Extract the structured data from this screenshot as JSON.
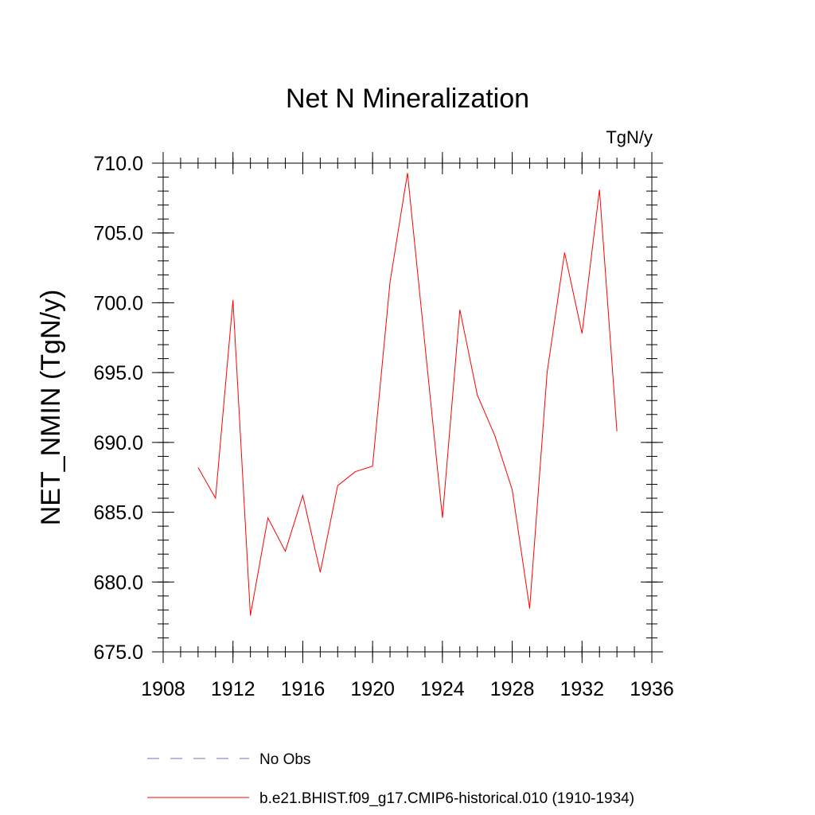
{
  "chart_data": {
    "type": "line",
    "title": "Net N Mineralization",
    "units_label": "TgN/y",
    "ylabel": "NET_NMIN  (TgN/y)",
    "xlabel": "",
    "xlim": [
      1908,
      1936
    ],
    "ylim": [
      675.0,
      710.0
    ],
    "x_ticks": [
      1908,
      1912,
      1916,
      1920,
      1924,
      1928,
      1932,
      1936
    ],
    "x_minor_step": 1,
    "y_ticks": [
      "675.0",
      "680.0",
      "685.0",
      "690.0",
      "695.0",
      "700.0",
      "705.0",
      "710.0"
    ],
    "y_minor_step": 1,
    "grid": false,
    "series": [
      {
        "name": "b.e21.BHIST.f09_g17.CMIP6-historical.010 (1910-1934)",
        "color": "#ff0000",
        "style": "solid",
        "x": [
          1910,
          1911,
          1912,
          1913,
          1914,
          1915,
          1916,
          1917,
          1918,
          1919,
          1920,
          1921,
          1922,
          1923,
          1924,
          1925,
          1926,
          1927,
          1928,
          1929,
          1930,
          1931,
          1932,
          1933,
          1934
        ],
        "y": [
          688.2,
          686.0,
          700.2,
          677.6,
          684.6,
          682.2,
          686.2,
          680.7,
          686.9,
          687.9,
          688.3,
          701.5,
          709.3,
          697.0,
          684.6,
          699.5,
          693.4,
          690.5,
          686.6,
          678.1,
          695.0,
          703.6,
          697.8,
          708.1,
          690.8
        ]
      }
    ],
    "legend": [
      {
        "label": "No Obs",
        "color": "#6f6fc8",
        "style": "dashed"
      },
      {
        "label": "b.e21.BHIST.f09_g17.CMIP6-historical.010 (1910-1934)",
        "color": "#ff0000",
        "style": "solid"
      }
    ],
    "legend_position": "bottom"
  }
}
